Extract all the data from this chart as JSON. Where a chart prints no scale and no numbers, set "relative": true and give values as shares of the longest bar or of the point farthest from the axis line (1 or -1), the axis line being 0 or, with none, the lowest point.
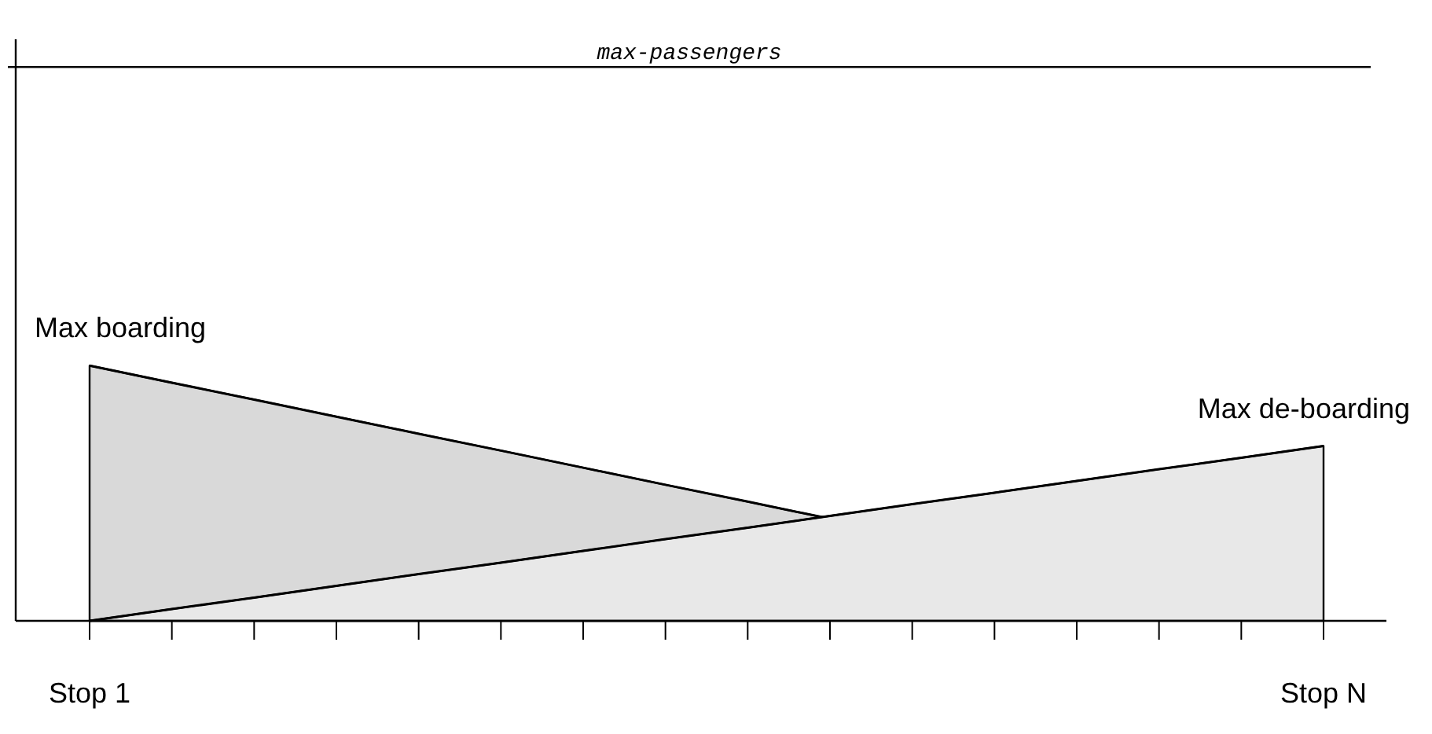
{
  "chart_data": {
    "type": "area",
    "relative": true,
    "categories": [
      "Stop 1",
      null,
      null,
      null,
      null,
      null,
      null,
      null,
      null,
      null,
      null,
      null,
      null,
      null,
      null,
      "Stop N"
    ],
    "series": [
      {
        "color": "#d9d9d9",
        "values": [
          1,
          0.933,
          0.867,
          0.8,
          0.733,
          0.667,
          0.6,
          0.533,
          0.467,
          0.4,
          null,
          null,
          null,
          null,
          null,
          null
        ]
      },
      {
        "color": "#e8e8e8",
        "values": [
          0,
          0.046,
          0.091,
          0.137,
          0.183,
          0.228,
          0.274,
          0.32,
          0.365,
          0.411,
          0.457,
          0.502,
          0.548,
          0.594,
          0.639,
          0.685
        ]
      }
    ],
    "annotations": [
      {
        "text": "Max boarding",
        "x": "Stop 1",
        "y": 1
      },
      {
        "text": "Max de-boarding",
        "x": "Stop N",
        "y": 0.685
      }
    ],
    "ref_lines": [
      {
        "axis": "y",
        "value": 2.17,
        "label": "max-passengers",
        "color": "#000000"
      }
    ],
    "tick_labels": "x"
  }
}
